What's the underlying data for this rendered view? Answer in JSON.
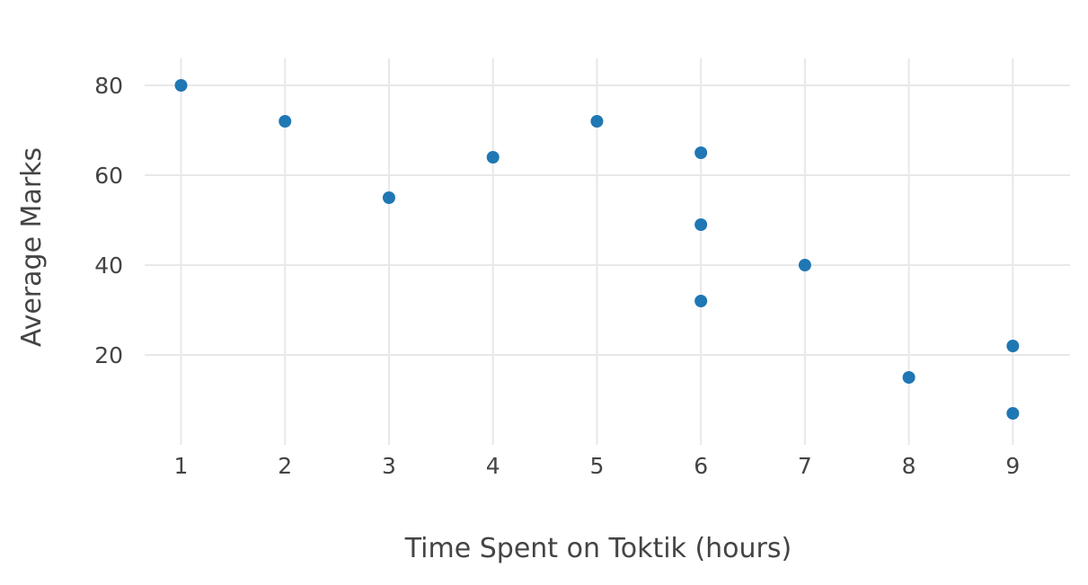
{
  "chart_data": {
    "type": "scatter",
    "title": "",
    "xlabel": "Time Spent on Toktik (hours)",
    "ylabel": "Average Marks",
    "xlim": [
      0.65,
      9.55
    ],
    "ylim": [
      0,
      86
    ],
    "x_ticks": [
      1,
      2,
      3,
      4,
      5,
      6,
      7,
      8,
      9
    ],
    "y_ticks": [
      20,
      40,
      60,
      80
    ],
    "grid": true,
    "marker_color": "#1f77b4",
    "series": [
      {
        "points": [
          {
            "x": 1,
            "y": 80
          },
          {
            "x": 2,
            "y": 72
          },
          {
            "x": 3,
            "y": 55
          },
          {
            "x": 4,
            "y": 64
          },
          {
            "x": 5,
            "y": 72
          },
          {
            "x": 6,
            "y": 65
          },
          {
            "x": 6,
            "y": 49
          },
          {
            "x": 6,
            "y": 32
          },
          {
            "x": 7,
            "y": 40
          },
          {
            "x": 8,
            "y": 15
          },
          {
            "x": 9,
            "y": 22
          },
          {
            "x": 9,
            "y": 7
          }
        ]
      }
    ]
  }
}
